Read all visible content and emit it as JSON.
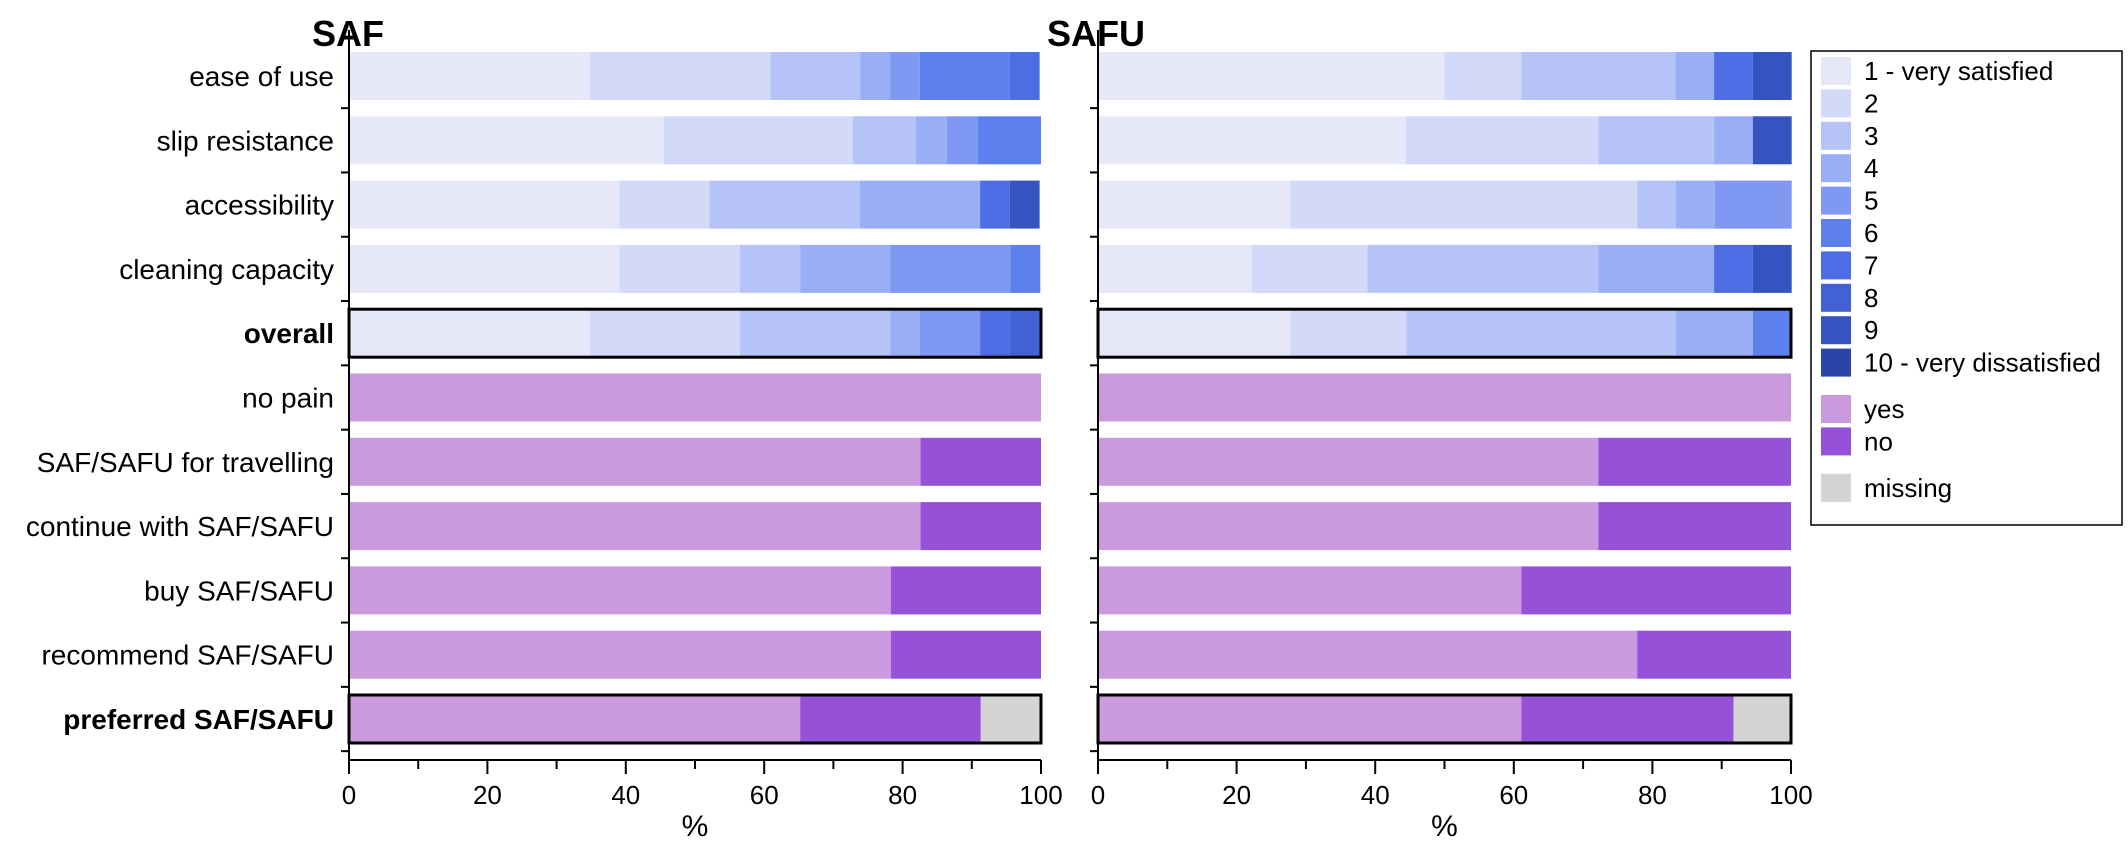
{
  "chart_data": {
    "type": "bar",
    "orientation": "horizontal",
    "stacked": true,
    "xlabel": "%",
    "xlim": [
      0,
      100
    ],
    "xticks": [
      0,
      20,
      40,
      60,
      80,
      100
    ],
    "categories": [
      "ease of use",
      "slip resistance",
      "accessibility",
      "cleaning capacity",
      "overall",
      "no pain",
      "SAF/SAFU for travelling",
      "continue with SAF/SAFU",
      "buy SAF/SAFU",
      "recommend SAF/SAFU",
      "preferred SAF/SAFU"
    ],
    "bold_categories": [
      "overall",
      "preferred SAF/SAFU"
    ],
    "legend": {
      "position": "right",
      "groups": [
        [
          {
            "key": "s1",
            "label": "1 - very satisfied",
            "color": "#e6e8f9"
          },
          {
            "key": "s2",
            "label": "2",
            "color": "#d2d9f9"
          },
          {
            "key": "s3",
            "label": "3",
            "color": "#b5c3f7"
          },
          {
            "key": "s4",
            "label": "4",
            "color": "#99aef5"
          },
          {
            "key": "s5",
            "label": "5",
            "color": "#7f98f2"
          },
          {
            "key": "s6",
            "label": "6",
            "color": "#5c80ee"
          },
          {
            "key": "s7",
            "label": "7",
            "color": "#4c6de3"
          },
          {
            "key": "s8",
            "label": "8",
            "color": "#4261d4"
          },
          {
            "key": "s9",
            "label": "9",
            "color": "#3553c1"
          },
          {
            "key": "s10",
            "label": "10 - very dissatisfied",
            "color": "#2a44aa"
          }
        ],
        [
          {
            "key": "yes",
            "label": "yes",
            "color": "#cb99de"
          },
          {
            "key": "no",
            "label": "no",
            "color": "#9552d9"
          }
        ],
        [
          {
            "key": "missing",
            "label": "missing",
            "color": "#d4d4d4"
          }
        ]
      ]
    },
    "panels": [
      {
        "title": "SAF",
        "rows": [
          {
            "category": "ease of use",
            "segments": [
              [
                "s1",
                34.8
              ],
              [
                "s2",
                26.1
              ],
              [
                "s3",
                13.0
              ],
              [
                "s4",
                4.3
              ],
              [
                "s5",
                4.3
              ],
              [
                "s6",
                13.0
              ],
              [
                "s7",
                4.3
              ]
            ]
          },
          {
            "category": "slip resistance",
            "segments": [
              [
                "s1",
                45.5
              ],
              [
                "s2",
                27.3
              ],
              [
                "s3",
                9.1
              ],
              [
                "s4",
                4.5
              ],
              [
                "s5",
                4.5
              ],
              [
                "s6",
                9.1
              ]
            ]
          },
          {
            "category": "accessibility",
            "segments": [
              [
                "s1",
                39.1
              ],
              [
                "s2",
                13.0
              ],
              [
                "s3",
                21.7
              ],
              [
                "s4",
                17.4
              ],
              [
                "s7",
                4.3
              ],
              [
                "s9",
                4.3
              ]
            ]
          },
          {
            "category": "cleaning capacity",
            "segments": [
              [
                "s1",
                39.1
              ],
              [
                "s2",
                17.4
              ],
              [
                "s3",
                8.7
              ],
              [
                "s4",
                13.0
              ],
              [
                "s5",
                17.4
              ],
              [
                "s6",
                4.3
              ]
            ]
          },
          {
            "category": "overall",
            "outlined": true,
            "segments": [
              [
                "s1",
                34.8
              ],
              [
                "s2",
                21.7
              ],
              [
                "s3",
                21.7
              ],
              [
                "s4",
                4.3
              ],
              [
                "s5",
                8.7
              ],
              [
                "s7",
                4.3
              ],
              [
                "s8",
                4.3
              ]
            ]
          },
          {
            "category": "no pain",
            "segments": [
              [
                "yes",
                100
              ]
            ]
          },
          {
            "category": "SAF/SAFU for travelling",
            "segments": [
              [
                "yes",
                82.6
              ],
              [
                "no",
                17.4
              ]
            ]
          },
          {
            "category": "continue with SAF/SAFU",
            "segments": [
              [
                "yes",
                82.6
              ],
              [
                "no",
                17.4
              ]
            ]
          },
          {
            "category": "buy SAF/SAFU",
            "segments": [
              [
                "yes",
                78.3
              ],
              [
                "no",
                21.7
              ]
            ]
          },
          {
            "category": "recommend SAF/SAFU",
            "segments": [
              [
                "yes",
                78.3
              ],
              [
                "no",
                21.7
              ]
            ]
          },
          {
            "category": "preferred SAF/SAFU",
            "outlined": true,
            "segments": [
              [
                "yes",
                65.2
              ],
              [
                "no",
                26.1
              ],
              [
                "missing",
                8.7
              ]
            ]
          }
        ]
      },
      {
        "title": "SAFU",
        "rows": [
          {
            "category": "ease of use",
            "segments": [
              [
                "s1",
                50.0
              ],
              [
                "s2",
                11.1
              ],
              [
                "s3",
                22.2
              ],
              [
                "s4",
                5.6
              ],
              [
                "s7",
                5.6
              ],
              [
                "s9",
                5.6
              ]
            ]
          },
          {
            "category": "slip resistance",
            "segments": [
              [
                "s1",
                44.4
              ],
              [
                "s2",
                27.8
              ],
              [
                "s3",
                16.7
              ],
              [
                "s4",
                5.6
              ],
              [
                "s9",
                5.6
              ]
            ]
          },
          {
            "category": "accessibility",
            "segments": [
              [
                "s1",
                27.8
              ],
              [
                "s2",
                50.0
              ],
              [
                "s3",
                5.6
              ],
              [
                "s4",
                5.6
              ],
              [
                "s5",
                11.1
              ]
            ]
          },
          {
            "category": "cleaning capacity",
            "segments": [
              [
                "s1",
                22.2
              ],
              [
                "s2",
                16.7
              ],
              [
                "s3",
                33.3
              ],
              [
                "s4",
                16.7
              ],
              [
                "s7",
                5.6
              ],
              [
                "s9",
                5.6
              ]
            ]
          },
          {
            "category": "overall",
            "outlined": true,
            "segments": [
              [
                "s1",
                27.8
              ],
              [
                "s2",
                16.7
              ],
              [
                "s3",
                38.9
              ],
              [
                "s4",
                11.1
              ],
              [
                "s6",
                5.6
              ]
            ]
          },
          {
            "category": "no pain",
            "segments": [
              [
                "yes",
                100
              ]
            ]
          },
          {
            "category": "SAF/SAFU for travelling",
            "segments": [
              [
                "yes",
                72.2
              ],
              [
                "no",
                27.8
              ]
            ]
          },
          {
            "category": "continue with SAF/SAFU",
            "segments": [
              [
                "yes",
                72.2
              ],
              [
                "no",
                27.8
              ]
            ]
          },
          {
            "category": "buy SAF/SAFU",
            "segments": [
              [
                "yes",
                61.1
              ],
              [
                "no",
                38.9
              ]
            ]
          },
          {
            "category": "recommend SAF/SAFU",
            "segments": [
              [
                "yes",
                77.8
              ],
              [
                "no",
                22.2
              ]
            ]
          },
          {
            "category": "preferred SAF/SAFU",
            "outlined": true,
            "segments": [
              [
                "yes",
                61.1
              ],
              [
                "no",
                30.6
              ],
              [
                "missing",
                8.3
              ]
            ]
          }
        ]
      }
    ]
  }
}
